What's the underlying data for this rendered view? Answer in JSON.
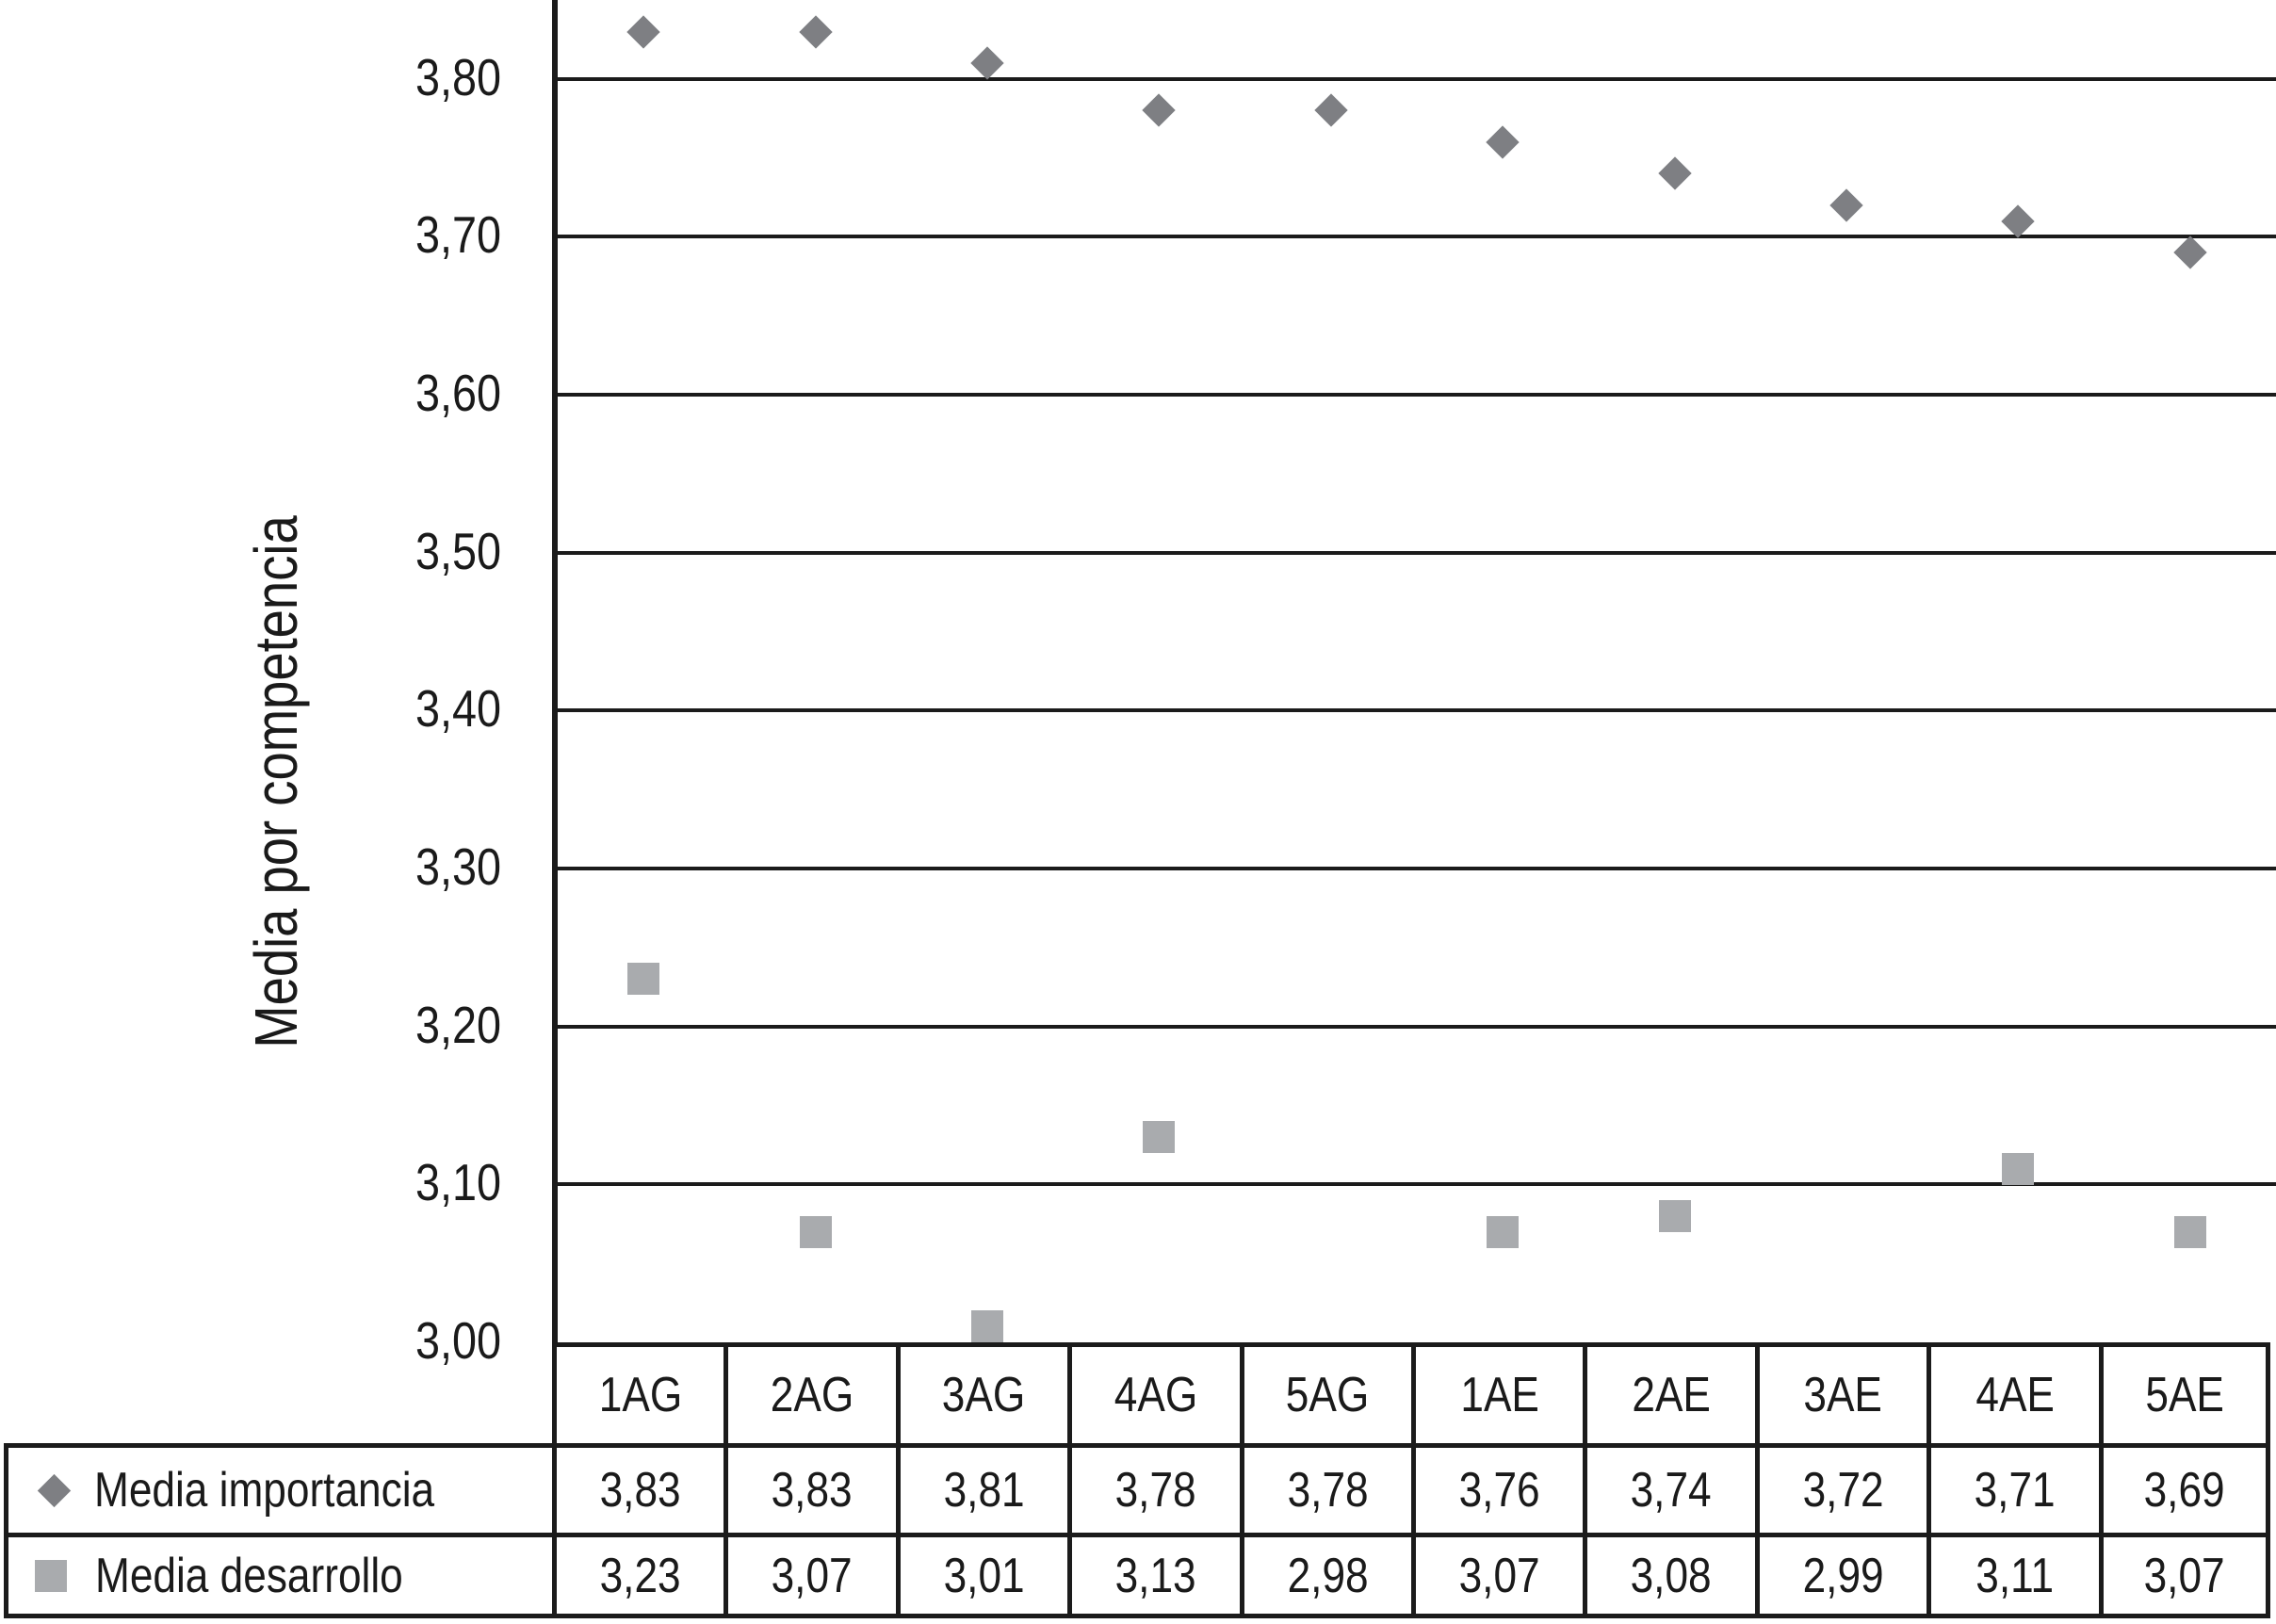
{
  "chart_data": {
    "type": "scatter",
    "title": "",
    "ylabel": "Media por competencia",
    "xlabel": "",
    "categories": [
      "1AG",
      "2AG",
      "3AG",
      "4AG",
      "5AG",
      "1AE",
      "2AE",
      "3AE",
      "4AE",
      "5AE"
    ],
    "series": [
      {
        "name": "Media importancia",
        "marker": "diamond-icon",
        "color": "#7e7f83",
        "values": [
          3.83,
          3.83,
          3.81,
          3.78,
          3.78,
          3.76,
          3.74,
          3.72,
          3.71,
          3.69
        ]
      },
      {
        "name": "Media desarrollo",
        "marker": "square-icon",
        "color": "#a9abae",
        "values": [
          3.23,
          3.07,
          3.01,
          3.13,
          2.98,
          3.07,
          3.08,
          2.99,
          3.11,
          3.07
        ]
      }
    ],
    "ylim": [
      3.0,
      3.85
    ],
    "yticks": [
      3.0,
      3.1,
      3.2,
      3.3,
      3.4,
      3.5,
      3.6,
      3.7,
      3.8
    ],
    "decimal_separator": ",",
    "grid": true,
    "legend_position": "table-left",
    "line_color": "#1b1b1b"
  }
}
